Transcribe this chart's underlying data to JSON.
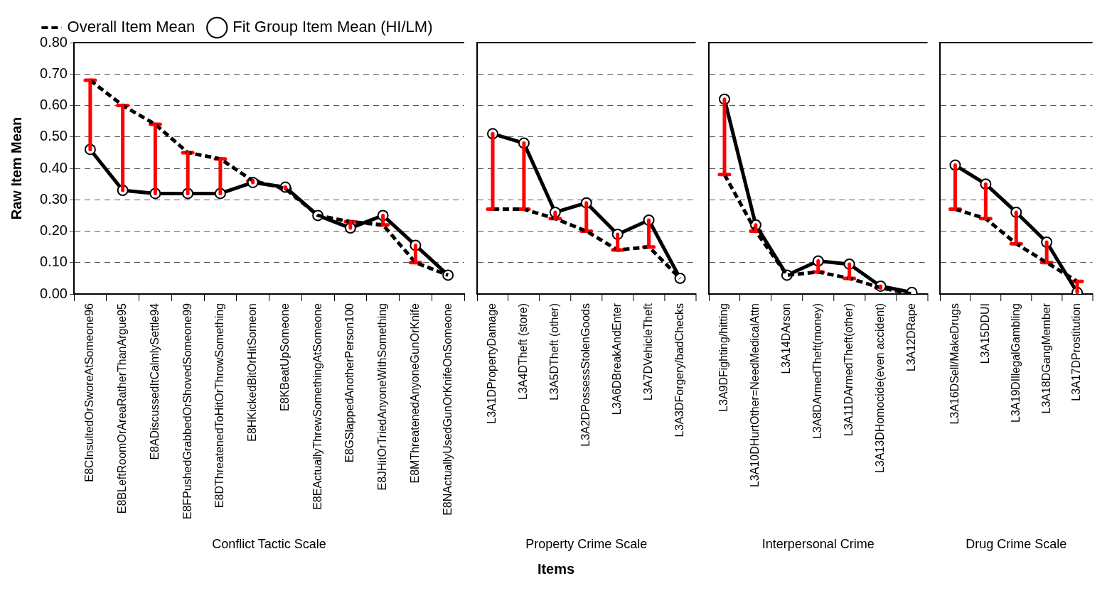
{
  "chart_data": [
    {
      "type": "line",
      "xlabel": "Conflict Tactic Scale",
      "ylabel": "Raw Item Mean",
      "categories": [
        "E8CInsultedOrSworeAtSomeone96",
        "E8BLeftRoomOrAreaRatherThanArgue95",
        "E8ADiscussedItCalmlySettle94",
        "E8FPushedGrabbedOrShovedSomeone99",
        "E8DThreatenedToHitOrThrowSomething",
        "E8HKickedBitOrHitSomeon",
        "E8KBeatUpSomeone",
        "E8EActuallyThrewSomethingAtSomeone",
        "E8GSlappedAnotherPerson100",
        "E8JHitOrTriedAnyoneWithSomething",
        "E8MThreatenedAnyoneGunOrKnife",
        "E8NActuallyUsedGunOrKnifeOnSomeone"
      ],
      "series": [
        {
          "name": "Overall Item Mean",
          "color": "#000000",
          "line_style": "dashed",
          "marker": "none",
          "values": [
            0.68,
            0.6,
            0.54,
            0.45,
            0.43,
            0.36,
            0.335,
            0.25,
            0.23,
            0.22,
            0.1,
            0.06
          ]
        },
        {
          "name": "Fit Group Item Mean (HI/LM)",
          "color": "#000000",
          "line_style": "solid",
          "marker": "circle",
          "values": [
            0.46,
            0.33,
            0.32,
            0.32,
            0.32,
            0.355,
            0.34,
            0.25,
            0.21,
            0.25,
            0.155,
            0.06
          ],
          "errors": [
            [
              0.46,
              0.68
            ],
            [
              0.33,
              0.6
            ],
            [
              0.32,
              0.54
            ],
            [
              0.32,
              0.45
            ],
            [
              0.32,
              0.43
            ],
            [
              0.355,
              0.36
            ],
            [
              0.335,
              0.34
            ],
            null,
            [
              0.21,
              0.23
            ],
            [
              0.22,
              0.25
            ],
            [
              0.1,
              0.155
            ],
            null
          ]
        }
      ],
      "ylim": [
        0,
        0.8
      ],
      "yticks": [
        {
          "value": 0,
          "label": "0.00"
        },
        {
          "value": 0.1,
          "label": "0.10"
        },
        {
          "value": 0.2,
          "label": "0.20"
        },
        {
          "value": 0.3,
          "label": "0.30"
        },
        {
          "value": 0.4,
          "label": "0.40"
        },
        {
          "value": 0.5,
          "label": "0.50"
        },
        {
          "value": 0.6,
          "label": "0.60"
        },
        {
          "value": 0.7,
          "label": "0.70"
        },
        {
          "value": 0.8,
          "label": "0.80"
        }
      ],
      "grid": "y",
      "legend": "top",
      "annotations": [
        "Items"
      ]
    },
    {
      "type": "line",
      "xlabel": "Property Crime Scale",
      "categories": [
        "L3A1DPropertyDamage",
        "L3A4DTheft (store)",
        "L3A5DTheft (other)",
        "L3A2DPossessStolenGoods",
        "L3A6DBreakAndEnter",
        "L3A7DVehicleTheft",
        "L3A3DForgery/badChecks"
      ],
      "series": [
        {
          "color": "#000000",
          "line_style": "dashed",
          "marker": "none",
          "values": [
            0.27,
            0.27,
            0.24,
            0.2,
            0.14,
            0.15,
            0.05
          ]
        },
        {
          "color": "#000000",
          "line_style": "solid",
          "marker": "circle",
          "values": [
            0.51,
            0.48,
            0.26,
            0.29,
            0.19,
            0.235,
            0.05
          ],
          "errors": [
            [
              0.27,
              0.51
            ],
            [
              0.27,
              0.48
            ],
            [
              0.24,
              0.26
            ],
            [
              0.2,
              0.29
            ],
            [
              0.14,
              0.19
            ],
            [
              0.15,
              0.235
            ],
            null
          ]
        }
      ],
      "ylim": [
        0,
        0.8
      ],
      "yticks": [
        {
          "value": 0,
          "label": null
        },
        {
          "value": 0.1,
          "label": null
        },
        {
          "value": 0.2,
          "label": null
        },
        {
          "value": 0.3,
          "label": null
        },
        {
          "value": 0.4,
          "label": null
        },
        {
          "value": 0.5,
          "label": null
        },
        {
          "value": 0.6,
          "label": null
        },
        {
          "value": 0.7,
          "label": null
        },
        {
          "value": 0.8,
          "label": null
        }
      ],
      "grid": "y",
      "tick_labels": "x"
    },
    {
      "type": "line",
      "xlabel": "Interpersonal Crime",
      "categories": [
        "L3A9DFighting/hitting",
        "L3A10DHurtOther=NeedMedicalAttn",
        "L3A14DArson",
        "L3A8DArmedTheft(money)",
        "L3A11DArmedTheft(other)",
        "L3A13DHomocide(even accident)",
        "L3A12DRape"
      ],
      "series": [
        {
          "color": "#000000",
          "line_style": "dashed",
          "marker": "none",
          "values": [
            0.38,
            0.2,
            0.06,
            0.07,
            0.05,
            0.02,
            0.0
          ]
        },
        {
          "color": "#000000",
          "line_style": "solid",
          "marker": "circle",
          "values": [
            0.62,
            0.22,
            0.06,
            0.105,
            0.095,
            0.025,
            0.005
          ],
          "errors": [
            [
              0.38,
              0.62
            ],
            [
              0.2,
              0.22
            ],
            null,
            [
              0.07,
              0.105
            ],
            [
              0.05,
              0.095
            ],
            [
              0.02,
              0.025
            ],
            null
          ]
        }
      ],
      "ylim": [
        0,
        0.8
      ],
      "yticks": [
        {
          "value": 0,
          "label": null
        },
        {
          "value": 0.1,
          "label": null
        },
        {
          "value": 0.2,
          "label": null
        },
        {
          "value": 0.3,
          "label": null
        },
        {
          "value": 0.4,
          "label": null
        },
        {
          "value": 0.5,
          "label": null
        },
        {
          "value": 0.6,
          "label": null
        },
        {
          "value": 0.7,
          "label": null
        },
        {
          "value": 0.8,
          "label": null
        }
      ],
      "grid": "y",
      "tick_labels": "x"
    },
    {
      "type": "line",
      "xlabel": "Drug Crime Scale",
      "categories": [
        "L3A16DSell/MakeDrugs",
        "L3A15DDUI",
        "L3A19DIllegalGambling",
        "L3A18DGangMember",
        "L3A17DProstitution"
      ],
      "series": [
        {
          "color": "#000000",
          "line_style": "dashed",
          "marker": "none",
          "values": [
            0.27,
            0.24,
            0.16,
            0.1,
            0.04
          ]
        },
        {
          "color": "#000000",
          "line_style": "solid",
          "marker": "circle",
          "values": [
            0.41,
            0.35,
            0.26,
            0.165,
            0.005
          ],
          "errors": [
            [
              0.27,
              0.41
            ],
            [
              0.24,
              0.35
            ],
            [
              0.16,
              0.26
            ],
            [
              0.1,
              0.165
            ],
            [
              0.005,
              0.04
            ]
          ]
        }
      ],
      "ylim": [
        0,
        0.8
      ],
      "yticks": [
        {
          "value": 0,
          "label": null
        },
        {
          "value": 0.1,
          "label": null
        },
        {
          "value": 0.2,
          "label": null
        },
        {
          "value": 0.3,
          "label": null
        },
        {
          "value": 0.4,
          "label": null
        },
        {
          "value": 0.5,
          "label": null
        },
        {
          "value": 0.6,
          "label": null
        },
        {
          "value": 0.7,
          "label": null
        },
        {
          "value": 0.8,
          "label": null
        }
      ],
      "grid": "y",
      "tick_labels": "x"
    }
  ]
}
